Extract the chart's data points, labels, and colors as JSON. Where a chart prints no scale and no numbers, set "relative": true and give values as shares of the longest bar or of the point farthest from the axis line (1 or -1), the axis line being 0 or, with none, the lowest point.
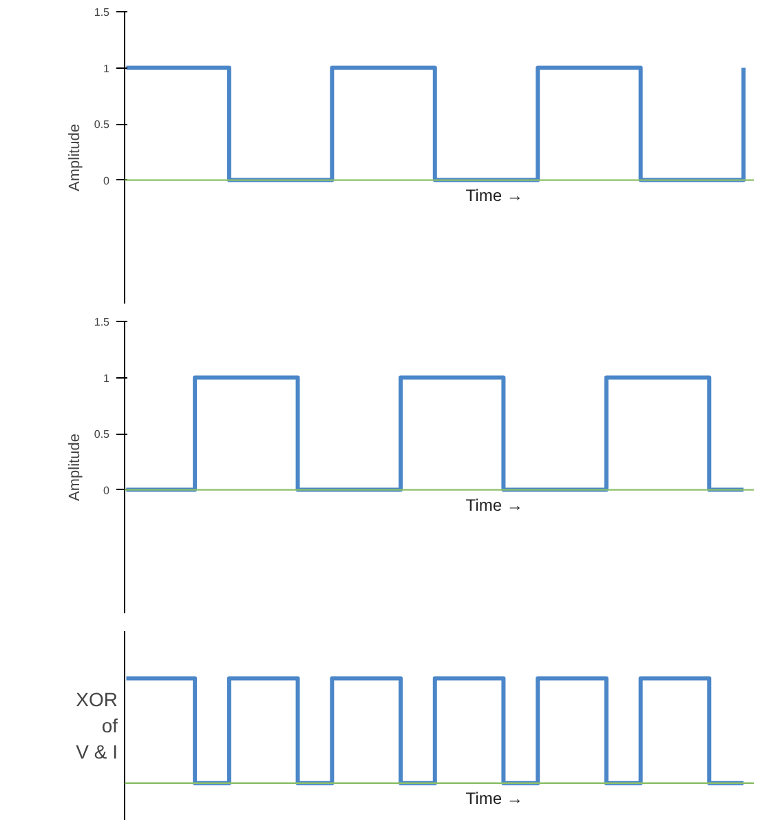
{
  "chart_data": [
    {
      "type": "step",
      "categories": [
        null,
        null,
        null,
        null,
        null,
        null,
        null,
        null,
        null,
        null,
        null,
        null,
        null,
        null,
        null,
        null,
        null,
        null,
        null
      ],
      "values": [
        1,
        1,
        1,
        0,
        0,
        0,
        1,
        1,
        1,
        0,
        0,
        0,
        1,
        1,
        1,
        0,
        0,
        0,
        1
      ],
      "color": "#4a86c8",
      "ylabel": "Amplitude",
      "xlabel": "Time →",
      "ylim": [
        -1.1,
        1.5
      ],
      "yticks": [
        0,
        0.5,
        1,
        1.5
      ],
      "ref_lines": [
        {
          "axis": "y",
          "value": 0,
          "color": "#8cbf6a"
        }
      ]
    },
    {
      "type": "step",
      "categories": [
        null,
        null,
        null,
        null,
        null,
        null,
        null,
        null,
        null,
        null,
        null,
        null,
        null,
        null,
        null,
        null,
        null,
        null,
        null
      ],
      "values": [
        0,
        0,
        1,
        1,
        1,
        0,
        0,
        0,
        1,
        1,
        1,
        0,
        0,
        0,
        1,
        1,
        1,
        0,
        0
      ],
      "color": "#4a86c8",
      "ylabel": "Amplitude",
      "xlabel": "Time →",
      "ylim": [
        -1.1,
        1.5
      ],
      "yticks": [
        0,
        0.5,
        1,
        1.5
      ],
      "ref_lines": [
        {
          "axis": "y",
          "value": 0,
          "color": "#8cbf6a"
        }
      ]
    },
    {
      "type": "step",
      "relative": true,
      "categories": [
        null,
        null,
        null,
        null,
        null,
        null,
        null,
        null,
        null,
        null,
        null,
        null,
        null,
        null,
        null,
        null,
        null,
        null,
        null
      ],
      "values": [
        1,
        1,
        0,
        1,
        1,
        0,
        1,
        1,
        0,
        1,
        1,
        0,
        1,
        1,
        0,
        1,
        1,
        0,
        0
      ],
      "color": "#4a86c8",
      "ylabel": "XOR\nof\nV & I",
      "xlabel": "Time →",
      "ref_lines": [
        {
          "axis": "y",
          "value": 0,
          "color": "#8cbf6a"
        }
      ]
    }
  ]
}
